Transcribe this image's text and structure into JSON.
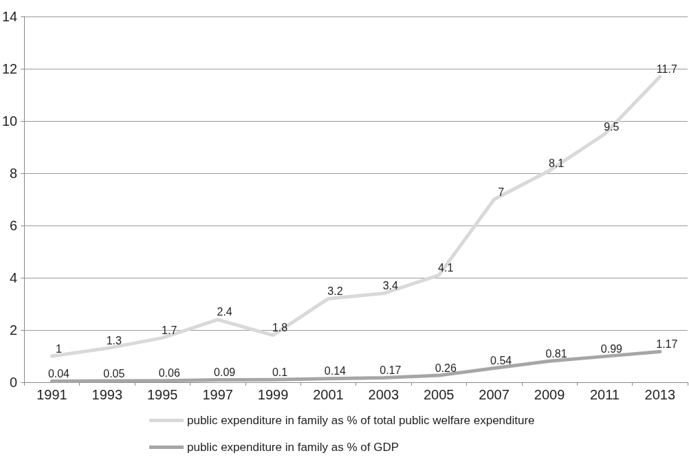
{
  "chart_data": {
    "type": "line",
    "categories": [
      "1991",
      "1993",
      "1995",
      "1997",
      "1999",
      "2001",
      "2003",
      "2005",
      "2007",
      "2009",
      "2011",
      "2013"
    ],
    "series": [
      {
        "name": "public expenditure in family as % of total public welfare expenditure",
        "color": "#d9d9d9",
        "values": [
          1,
          1.3,
          1.7,
          2.4,
          1.8,
          3.2,
          3.4,
          4.1,
          7,
          8.1,
          9.5,
          11.7
        ]
      },
      {
        "name": "public expenditure in family as % of GDP",
        "color": "#a6a6a6",
        "values": [
          0.04,
          0.05,
          0.06,
          0.09,
          0.1,
          0.14,
          0.17,
          0.26,
          0.54,
          0.81,
          0.99,
          1.17
        ]
      }
    ],
    "ylim": [
      0,
      14
    ],
    "yticks": [
      0,
      2,
      4,
      6,
      8,
      10,
      12,
      14
    ],
    "grid": "y",
    "legend": "bottom",
    "data_labels": true,
    "marker": "none",
    "line_style": "solid"
  }
}
